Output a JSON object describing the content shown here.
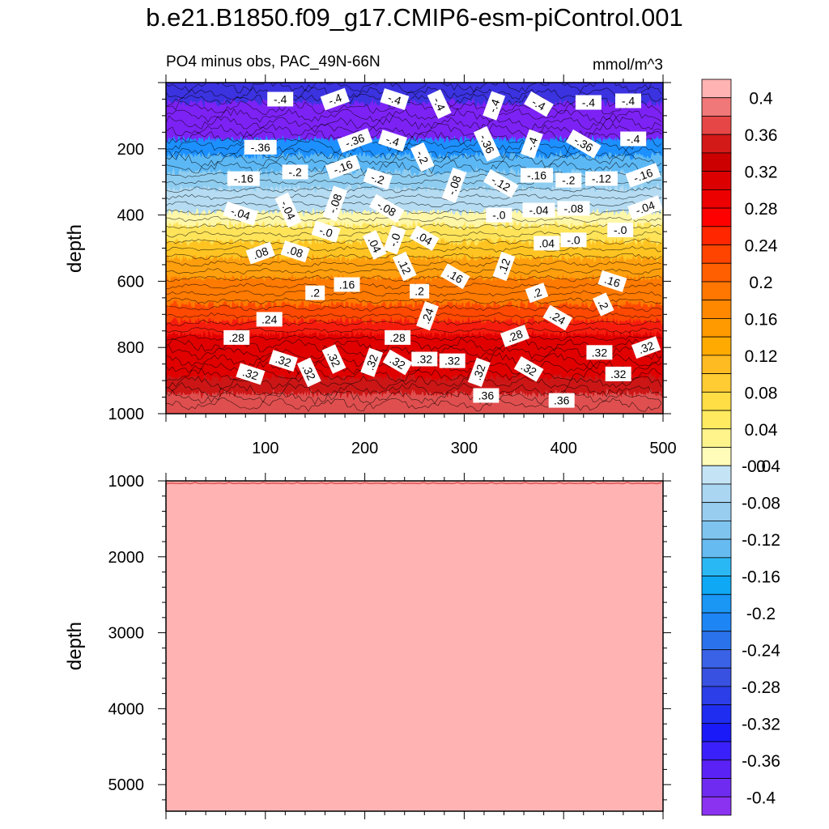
{
  "chart_data": {
    "type": "contour",
    "title": "b.e21.B1850.f09_g17.CMIP6-esm-piControl.001",
    "subtitle_left": "PO4 minus obs, PAC_49N-66N",
    "units": "mmol/m^3",
    "top_panel": {
      "ylabel": "depth",
      "ylim": [
        0,
        1000
      ],
      "y_inverted": true,
      "y_ticks": [
        200,
        400,
        600,
        800,
        1000
      ],
      "xlim": [
        0,
        500
      ],
      "x_ticks": [
        100,
        200,
        300,
        400,
        500
      ],
      "bands": [
        {
          "depth_top": 0,
          "depth_bottom": 70,
          "color": "#3a32e0"
        },
        {
          "depth_top": 70,
          "depth_bottom": 180,
          "color": "#7d23f5"
        },
        {
          "depth_top": 180,
          "depth_bottom": 230,
          "color": "#1e90ff"
        },
        {
          "depth_top": 230,
          "depth_bottom": 280,
          "color": "#5cb8f5"
        },
        {
          "depth_top": 280,
          "depth_bottom": 330,
          "color": "#8fcdf0"
        },
        {
          "depth_top": 330,
          "depth_bottom": 400,
          "color": "#b5dcf2"
        },
        {
          "depth_top": 400,
          "depth_bottom": 440,
          "color": "#fff7a8"
        },
        {
          "depth_top": 440,
          "depth_bottom": 490,
          "color": "#ffe45a"
        },
        {
          "depth_top": 490,
          "depth_bottom": 540,
          "color": "#ffc424"
        },
        {
          "depth_top": 540,
          "depth_bottom": 600,
          "color": "#ff9f0a"
        },
        {
          "depth_top": 600,
          "depth_bottom": 680,
          "color": "#ff7a00"
        },
        {
          "depth_top": 680,
          "depth_bottom": 730,
          "color": "#ff4a00"
        },
        {
          "depth_top": 730,
          "depth_bottom": 770,
          "color": "#f51e0a"
        },
        {
          "depth_top": 770,
          "depth_bottom": 900,
          "color": "#e00000"
        },
        {
          "depth_top": 900,
          "depth_bottom": 950,
          "color": "#cc1414"
        },
        {
          "depth_top": 950,
          "depth_bottom": 1000,
          "color": "#e05050"
        }
      ],
      "contour_labels": [
        {
          "x": 115,
          "depth": 50,
          "text": "-.4"
        },
        {
          "x": 170,
          "depth": 50,
          "text": "-.4"
        },
        {
          "x": 230,
          "depth": 50,
          "text": "-.4"
        },
        {
          "x": 275,
          "depth": 65,
          "text": "-.4"
        },
        {
          "x": 330,
          "depth": 70,
          "text": "-.4"
        },
        {
          "x": 375,
          "depth": 65,
          "text": "-.4"
        },
        {
          "x": 425,
          "depth": 60,
          "text": "-.4"
        },
        {
          "x": 465,
          "depth": 55,
          "text": "-.4"
        },
        {
          "x": 95,
          "depth": 195,
          "text": "-.36"
        },
        {
          "x": 190,
          "depth": 175,
          "text": "-.36"
        },
        {
          "x": 228,
          "depth": 175,
          "text": "-.4"
        },
        {
          "x": 323,
          "depth": 185,
          "text": "-.36"
        },
        {
          "x": 368,
          "depth": 185,
          "text": "-.4"
        },
        {
          "x": 420,
          "depth": 185,
          "text": "-.36"
        },
        {
          "x": 470,
          "depth": 170,
          "text": "-.4"
        },
        {
          "x": 78,
          "depth": 290,
          "text": "-.16"
        },
        {
          "x": 130,
          "depth": 270,
          "text": "-.2"
        },
        {
          "x": 178,
          "depth": 255,
          "text": "-.16"
        },
        {
          "x": 213,
          "depth": 290,
          "text": "-.2"
        },
        {
          "x": 258,
          "depth": 225,
          "text": "-.2"
        },
        {
          "x": 290,
          "depth": 310,
          "text": "-.08"
        },
        {
          "x": 337,
          "depth": 305,
          "text": "-.12"
        },
        {
          "x": 373,
          "depth": 280,
          "text": "-.16"
        },
        {
          "x": 405,
          "depth": 295,
          "text": "-.2"
        },
        {
          "x": 438,
          "depth": 290,
          "text": "-.12"
        },
        {
          "x": 480,
          "depth": 280,
          "text": "-.16"
        },
        {
          "x": 75,
          "depth": 395,
          "text": "-.04"
        },
        {
          "x": 123,
          "depth": 385,
          "text": "-.04"
        },
        {
          "x": 170,
          "depth": 365,
          "text": "-.08"
        },
        {
          "x": 222,
          "depth": 380,
          "text": "-.08"
        },
        {
          "x": 335,
          "depth": 400,
          "text": "-.0"
        },
        {
          "x": 375,
          "depth": 385,
          "text": "-.04"
        },
        {
          "x": 410,
          "depth": 380,
          "text": "-.08"
        },
        {
          "x": 482,
          "depth": 378,
          "text": "-.04"
        },
        {
          "x": 161,
          "depth": 450,
          "text": "-.0"
        },
        {
          "x": 210,
          "depth": 490,
          "text": ".04"
        },
        {
          "x": 230,
          "depth": 475,
          "text": "-.0"
        },
        {
          "x": 260,
          "depth": 470,
          "text": ".04"
        },
        {
          "x": 383,
          "depth": 485,
          "text": ".04"
        },
        {
          "x": 410,
          "depth": 475,
          "text": "-.0"
        },
        {
          "x": 457,
          "depth": 445,
          "text": "-.0"
        },
        {
          "x": 95,
          "depth": 515,
          "text": ".08"
        },
        {
          "x": 130,
          "depth": 510,
          "text": ".08"
        },
        {
          "x": 240,
          "depth": 555,
          "text": ".12"
        },
        {
          "x": 340,
          "depth": 555,
          "text": ".12"
        },
        {
          "x": 291,
          "depth": 585,
          "text": ".16"
        },
        {
          "x": 182,
          "depth": 610,
          "text": ".16"
        },
        {
          "x": 150,
          "depth": 635,
          "text": ".2"
        },
        {
          "x": 255,
          "depth": 630,
          "text": ".2"
        },
        {
          "x": 373,
          "depth": 635,
          "text": ".2"
        },
        {
          "x": 449,
          "depth": 600,
          "text": ".16"
        },
        {
          "x": 440,
          "depth": 670,
          "text": ".2"
        },
        {
          "x": 263,
          "depth": 705,
          "text": ".24"
        },
        {
          "x": 394,
          "depth": 710,
          "text": ".24"
        },
        {
          "x": 104,
          "depth": 715,
          "text": ".24"
        },
        {
          "x": 71,
          "depth": 770,
          "text": ".28"
        },
        {
          "x": 233,
          "depth": 770,
          "text": ".28"
        },
        {
          "x": 351,
          "depth": 765,
          "text": ".28"
        },
        {
          "x": 118,
          "depth": 840,
          "text": ".32"
        },
        {
          "x": 169,
          "depth": 835,
          "text": ".32"
        },
        {
          "x": 207,
          "depth": 845,
          "text": ".32"
        },
        {
          "x": 233,
          "depth": 845,
          "text": ".32"
        },
        {
          "x": 260,
          "depth": 835,
          "text": ".32"
        },
        {
          "x": 288,
          "depth": 840,
          "text": ".32"
        },
        {
          "x": 436,
          "depth": 815,
          "text": ".32"
        },
        {
          "x": 483,
          "depth": 800,
          "text": ".32"
        },
        {
          "x": 85,
          "depth": 880,
          "text": ".32"
        },
        {
          "x": 144,
          "depth": 875,
          "text": ".32"
        },
        {
          "x": 315,
          "depth": 875,
          "text": ".32"
        },
        {
          "x": 365,
          "depth": 865,
          "text": ".32"
        },
        {
          "x": 455,
          "depth": 880,
          "text": ".32"
        },
        {
          "x": 322,
          "depth": 945,
          "text": ".36"
        },
        {
          "x": 398,
          "depth": 960,
          "text": ".36"
        }
      ]
    },
    "bottom_panel": {
      "ylabel": "depth",
      "ylim": [
        1000,
        5350
      ],
      "y_inverted": true,
      "y_ticks": [
        1000,
        2000,
        3000,
        4000,
        5000
      ],
      "xlim": [
        0,
        500
      ],
      "fill_color": "#ffb3b3",
      "top_line_color": "#e05050"
    },
    "colorbar": {
      "levels": [
        "0.4",
        "0.36",
        "0.32",
        "0.28",
        "0.24",
        "0.2",
        "0.16",
        "0.12",
        "0.08",
        "0.04",
        "0",
        "-0.04",
        "-0.08",
        "-0.12",
        "-0.16",
        "-0.2",
        "-0.24",
        "-0.28",
        "-0.32",
        "-0.36",
        "-0.4"
      ],
      "colors": [
        "#ffb3b3",
        "#f07878",
        "#e64646",
        "#d41919",
        "#cc0000",
        "#dc0000",
        "#ec0000",
        "#ff0000",
        "#ff2600",
        "#ff4400",
        "#ff5f00",
        "#ff7700",
        "#ff8800",
        "#ff9a00",
        "#ffaa00",
        "#ffbb22",
        "#ffcc33",
        "#ffdd44",
        "#ffea60",
        "#fff48c",
        "#fffbb8",
        "#c4e4f6",
        "#aad6f2",
        "#98cdef",
        "#7fc4ef",
        "#66bbf0",
        "#2ab8f5",
        "#0ea8f5",
        "#1a96f5",
        "#1e85f5",
        "#2a72eb",
        "#3a62e6",
        "#3851e0",
        "#2c3ee8",
        "#1f2df0",
        "#1a1af8",
        "#3a20fa",
        "#5a22f5",
        "#6f2cf0",
        "#8a32f0"
      ]
    }
  }
}
